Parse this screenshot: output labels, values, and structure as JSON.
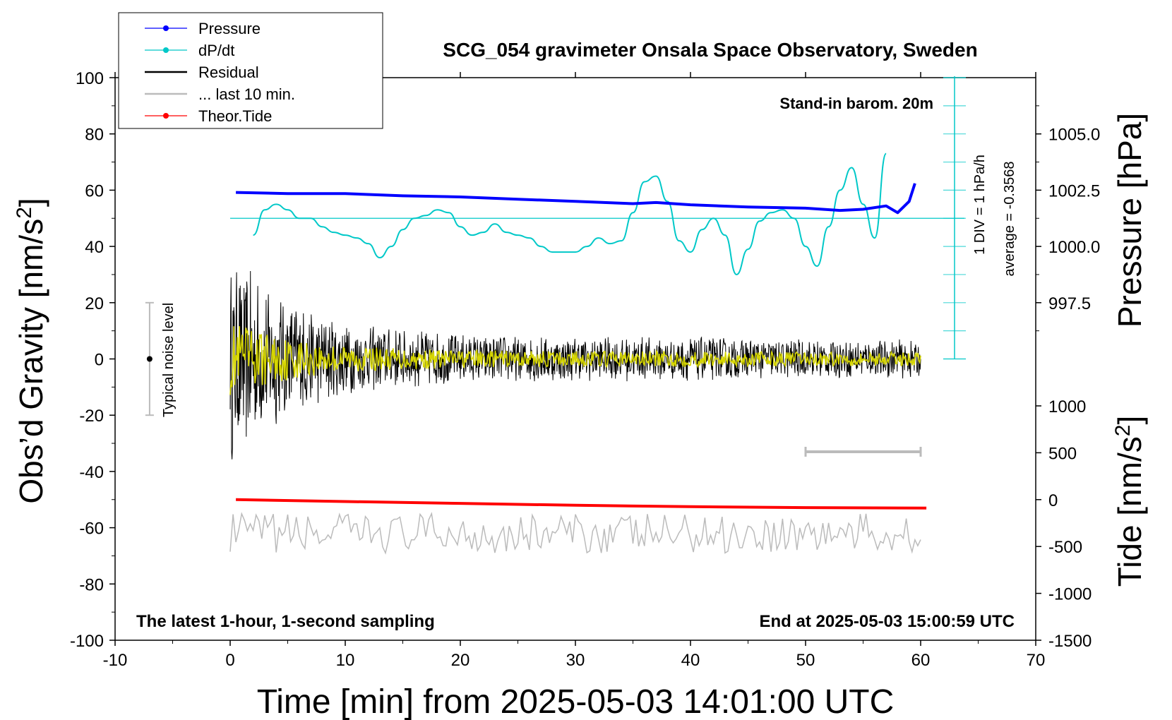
{
  "chart_data": {
    "type": "line",
    "title": "SCG_054 gravimeter Onsala Space Observatory, Sweden",
    "xlabel": "Time [min] from 2025-05-03 14:01:00 UTC",
    "ylabel_left": "Obs’d Gravity [nm/s",
    "ylabel_left_sup": "2",
    "ylabel_left_end": "]",
    "ylabel_pressure": "Pressure [hPa]",
    "ylabel_tide": "Tide [nm/s",
    "ylabel_tide_sup": "2",
    "ylabel_tide_end": "]",
    "xlim": [
      -10,
      70
    ],
    "ylim": [
      -100,
      100
    ],
    "x_ticks": [
      "-10",
      "0",
      "10",
      "20",
      "30",
      "40",
      "50",
      "60",
      "70"
    ],
    "y_ticks": [
      "100",
      "80",
      "60",
      "40",
      "20",
      "0",
      "-20",
      "-40",
      "-60",
      "-80",
      "-100"
    ],
    "pressure_axis": {
      "range": [
        995.0,
        1007.5
      ],
      "ticks": [
        "1005.0",
        "1002.5",
        "1000.0",
        "997.5"
      ]
    },
    "tide_axis": {
      "range": [
        -1500,
        1500
      ],
      "ticks": [
        "1000",
        "500",
        "0",
        "-500",
        "-1000",
        "-1500"
      ]
    },
    "legend": {
      "position": "top-left",
      "entries": [
        {
          "label": "Pressure",
          "color": "#0000ff",
          "marker": true
        },
        {
          "label": "dP/dt",
          "color": "#00c8c8",
          "marker": true
        },
        {
          "label": "Residual",
          "color": "#000000",
          "marker": false
        },
        {
          "label": "... last 10 min.",
          "color": "#bbbbbb",
          "marker": false
        },
        {
          "label": "Theor.Tide",
          "color": "#ff0000",
          "marker": true
        }
      ]
    },
    "annotations": {
      "barometer": "Stand-in barom. 20m",
      "div_label": "1 DIV = 1 hPa/h",
      "average": "average = -0.3568",
      "noise": "Typical noise level",
      "sampling": "The latest 1-hour, 1-second sampling",
      "end_time": "End at 2025-05-03 15:00:59 UTC"
    },
    "noise_bar": {
      "x": -7,
      "y_min": -20,
      "y_max": 20
    },
    "ten_min_bar": {
      "x_start": 50,
      "x_end": 60,
      "y": -33
    },
    "dpdt_zero_line_y": 50,
    "series": [
      {
        "name": "Pressure",
        "color": "#0000ff",
        "x": [
          0.5,
          5,
          10,
          15,
          20,
          25,
          30,
          35,
          37,
          40,
          45,
          50,
          53,
          55,
          57,
          58,
          59,
          59.5
        ],
        "y": [
          1002.4,
          1002.35,
          1002.35,
          1002.25,
          1002.2,
          1002.1,
          1002.0,
          1001.9,
          1001.95,
          1001.85,
          1001.75,
          1001.7,
          1001.6,
          1001.65,
          1001.8,
          1001.5,
          1002.0,
          1002.8
        ]
      },
      {
        "name": "dP/dt",
        "color": "#00c8c8",
        "x": [
          2,
          3,
          4,
          5,
          6,
          7,
          8,
          9,
          10,
          11,
          12,
          13,
          14,
          15,
          16,
          17,
          18,
          19,
          20,
          21,
          22,
          23,
          24,
          25,
          26,
          27,
          28,
          29,
          30,
          31,
          32,
          33,
          34,
          35,
          36,
          37,
          38,
          39,
          40,
          41,
          42,
          43,
          44,
          45,
          46,
          47,
          48,
          49,
          50,
          51,
          52,
          53,
          54,
          55,
          56,
          57
        ],
        "y": [
          44,
          53,
          55,
          53,
          50,
          50,
          47,
          45,
          44,
          43,
          41,
          36,
          40,
          46,
          50,
          51,
          53,
          52,
          47,
          44,
          45,
          48,
          45,
          44,
          43,
          40,
          38,
          38,
          38,
          40,
          43,
          41,
          42,
          52,
          63,
          65,
          56,
          42,
          38,
          46,
          50,
          44,
          30,
          39,
          49,
          52,
          53,
          50,
          40,
          33,
          47,
          60,
          68,
          55,
          43,
          73
        ]
      },
      {
        "name": "Residual",
        "color": "#000000",
        "envelope": {
          "x": [
            0,
            1,
            3,
            5,
            8,
            12,
            20,
            30,
            40,
            50,
            60
          ],
          "amp": [
            37,
            34,
            28,
            22,
            16,
            12,
            9,
            8,
            8,
            7,
            7
          ]
        }
      },
      {
        "name": "... last 10 min.",
        "color": "#bbbbbb",
        "x_range": [
          0,
          60
        ],
        "y_center": -62,
        "y_amp": 7
      },
      {
        "name": "Theor.Tide",
        "color": "#ff0000",
        "x": [
          0.5,
          10,
          20,
          30,
          40,
          50,
          60.5
        ],
        "y": [
          0,
          -20,
          -40,
          -60,
          -75,
          -85,
          -90
        ]
      }
    ],
    "smoothed_residual_color": "#d6d600"
  }
}
